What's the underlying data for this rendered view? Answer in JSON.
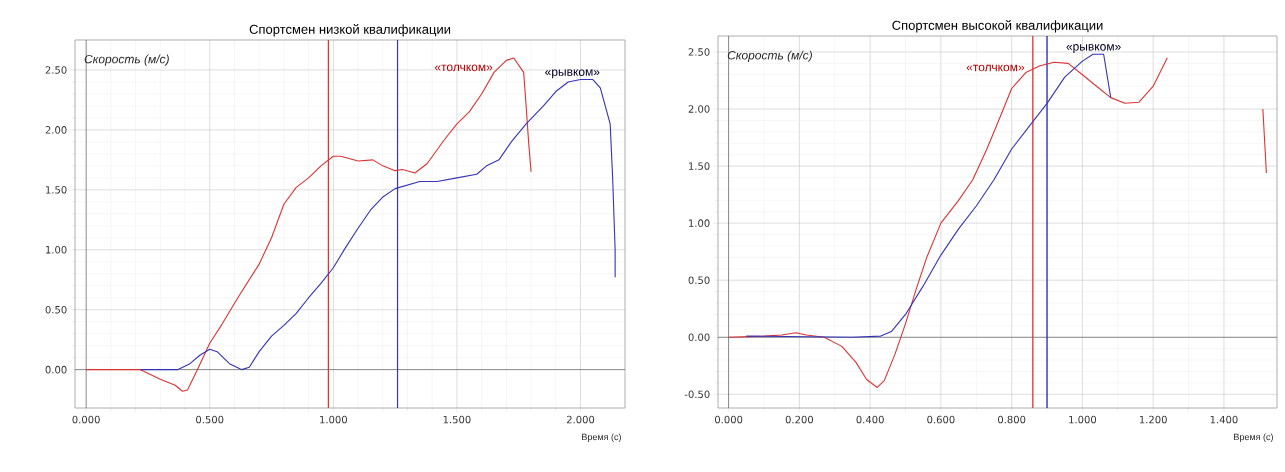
{
  "chart_data": [
    {
      "type": "line",
      "title": "Спортсмен низкой квалификации",
      "xlabel": "Время (с)",
      "ylabel": "Скорость (м/с)",
      "xlim": [
        -0.045,
        2.18
      ],
      "ylim": [
        -0.32,
        2.75
      ],
      "xticks": [
        {
          "value": 0,
          "label": "0.000"
        },
        {
          "value": 0.5,
          "label": "0.500"
        },
        {
          "value": 1,
          "label": "1.000"
        },
        {
          "value": 1.5,
          "label": "1.500"
        },
        {
          "value": 2,
          "label": "2.000"
        }
      ],
      "yticks": [
        {
          "value": 0,
          "label": "0.00"
        },
        {
          "value": 0.5,
          "label": "0.50"
        },
        {
          "value": 1,
          "label": "1.00"
        },
        {
          "value": 1.5,
          "label": "1.50"
        },
        {
          "value": 2,
          "label": "2.00"
        },
        {
          "value": 2.5,
          "label": "2.50"
        }
      ],
      "grid": true,
      "marker": "none",
      "line_style": "solid",
      "series": [
        {
          "name": "«толчком»",
          "color": "#dd3333",
          "x": [
            0,
            0.22,
            0.3,
            0.36,
            0.39,
            0.41,
            0.45,
            0.5,
            0.55,
            0.62,
            0.7,
            0.75,
            0.8,
            0.85,
            0.9,
            0.95,
            1.0,
            1.03,
            1.1,
            1.16,
            1.2,
            1.25,
            1.28,
            1.33,
            1.38,
            1.45,
            1.5,
            1.55,
            1.6,
            1.65,
            1.7,
            1.73,
            1.77,
            1.78,
            1.79,
            1.8
          ],
          "values": [
            0,
            0,
            -0.08,
            -0.13,
            -0.18,
            -0.17,
            0.0,
            0.22,
            0.38,
            0.62,
            0.88,
            1.1,
            1.38,
            1.52,
            1.6,
            1.7,
            1.78,
            1.78,
            1.74,
            1.75,
            1.7,
            1.66,
            1.67,
            1.64,
            1.72,
            1.92,
            2.05,
            2.15,
            2.3,
            2.48,
            2.58,
            2.6,
            2.48,
            2.2,
            1.9,
            1.65
          ]
        },
        {
          "name": "«рывком»",
          "color": "#3333bb",
          "x": [
            0.22,
            0.37,
            0.42,
            0.46,
            0.5,
            0.53,
            0.58,
            0.63,
            0.66,
            0.7,
            0.75,
            0.8,
            0.85,
            0.9,
            0.95,
            1.0,
            1.05,
            1.1,
            1.15,
            1.2,
            1.25,
            1.3,
            1.35,
            1.42,
            1.5,
            1.58,
            1.62,
            1.67,
            1.72,
            1.78,
            1.85,
            1.9,
            1.95,
            2.0,
            2.05,
            2.08,
            2.12,
            2.13,
            2.14,
            2.14
          ],
          "values": [
            0,
            0,
            0.05,
            0.12,
            0.17,
            0.15,
            0.05,
            0.0,
            0.02,
            0.15,
            0.28,
            0.37,
            0.47,
            0.6,
            0.72,
            0.85,
            1.02,
            1.18,
            1.33,
            1.44,
            1.51,
            1.54,
            1.57,
            1.57,
            1.6,
            1.63,
            1.7,
            1.75,
            1.9,
            2.05,
            2.2,
            2.32,
            2.4,
            2.42,
            2.42,
            2.35,
            2.05,
            1.6,
            1.0,
            0.77
          ]
        }
      ],
      "ref_lines": [
        {
          "axis": "x",
          "value": 0.98,
          "color": "#dd3333"
        },
        {
          "axis": "x",
          "value": 1.26,
          "color": "#3333bb"
        }
      ]
    },
    {
      "type": "line",
      "title": "Спортсмен высокой квалификации",
      "xlabel": "Время (с)",
      "ylabel": "Скорость (м/с)",
      "xlim": [
        -0.03,
        1.55
      ],
      "ylim": [
        -0.62,
        2.64
      ],
      "xticks": [
        {
          "value": 0,
          "label": "0.000"
        },
        {
          "value": 0.2,
          "label": "0.200"
        },
        {
          "value": 0.4,
          "label": "0.400"
        },
        {
          "value": 0.6,
          "label": "0.600"
        },
        {
          "value": 0.8,
          "label": "0.800"
        },
        {
          "value": 1.0,
          "label": "1.000"
        },
        {
          "value": 1.2,
          "label": "1.200"
        },
        {
          "value": 1.4,
          "label": "1.400"
        }
      ],
      "yticks": [
        {
          "value": -0.5,
          "label": "-0.50"
        },
        {
          "value": 0,
          "label": "0.00"
        },
        {
          "value": 0.5,
          "label": "0.50"
        },
        {
          "value": 1,
          "label": "1.00"
        },
        {
          "value": 1.5,
          "label": "1.50"
        },
        {
          "value": 2,
          "label": "2.00"
        },
        {
          "value": 2.5,
          "label": "2.50"
        }
      ],
      "grid": true,
      "marker": "none",
      "line_style": "solid",
      "series": [
        {
          "name": "«толчком»",
          "color": "#dd3333",
          "x": [
            0,
            0.1,
            0.15,
            0.19,
            0.22,
            0.27,
            0.32,
            0.36,
            0.39,
            0.42,
            0.44,
            0.47,
            0.5,
            0.53,
            0.56,
            0.6,
            0.65,
            0.69,
            0.73,
            0.77,
            0.8,
            0.84,
            0.88,
            0.92,
            0.96,
            1.0,
            1.04,
            1.08,
            1.12,
            1.16,
            1.2,
            1.24,
            1.28,
            1.5,
            1.51,
            1.52
          ],
          "values": [
            0,
            0.01,
            0.02,
            0.04,
            0.02,
            0.0,
            -0.08,
            -0.22,
            -0.37,
            -0.44,
            -0.38,
            -0.15,
            0.12,
            0.42,
            0.7,
            1.0,
            1.2,
            1.38,
            1.65,
            1.95,
            2.18,
            2.32,
            2.38,
            2.41,
            2.4,
            2.3,
            2.2,
            2.1,
            2.05,
            2.06,
            2.2,
            2.45,
            null,
            null,
            2.0,
            1.44
          ]
        },
        {
          "name": "«рывком»",
          "color": "#3333bb",
          "x": [
            0.05,
            0.35,
            0.43,
            0.46,
            0.5,
            0.55,
            0.6,
            0.65,
            0.7,
            0.75,
            0.8,
            0.85,
            0.9,
            0.95,
            1.0,
            1.03,
            1.06,
            1.08
          ],
          "values": [
            0.01,
            0.0,
            0.01,
            0.05,
            0.2,
            0.45,
            0.72,
            0.95,
            1.15,
            1.38,
            1.65,
            1.85,
            2.05,
            2.28,
            2.42,
            2.48,
            2.48,
            2.1
          ]
        }
      ],
      "ref_lines": [
        {
          "axis": "x",
          "value": 0.86,
          "color": "#dd3333"
        },
        {
          "axis": "x",
          "value": 0.9,
          "color": "#3333bb"
        }
      ]
    }
  ]
}
